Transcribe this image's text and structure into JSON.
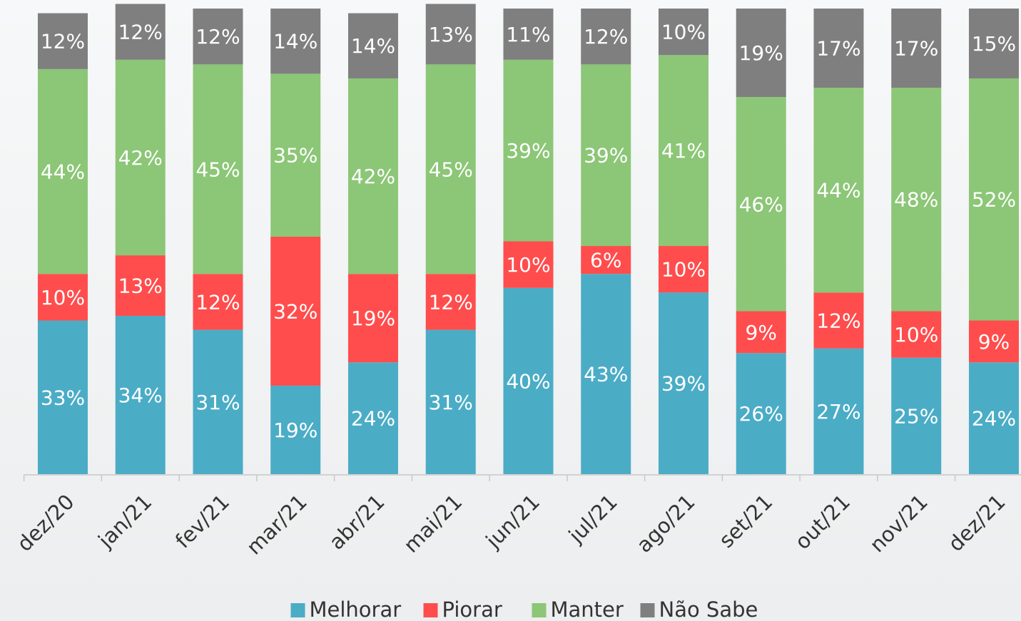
{
  "chart_data": {
    "type": "stacked-bar",
    "categories": [
      "dez/20",
      "jan/21",
      "fev/21",
      "mar/21",
      "abr/21",
      "mai/21",
      "jun/21",
      "jul/21",
      "ago/21",
      "set/21",
      "out/21",
      "nov/21",
      "dez/21"
    ],
    "ylim": [
      0,
      100
    ],
    "legend": "bottom",
    "series": [
      {
        "name": "Melhorar",
        "color": "#4bacc6",
        "values": [
          33,
          34,
          31,
          19,
          24,
          31,
          40,
          43,
          39,
          26,
          27,
          25,
          24
        ],
        "value_labels": [
          "33%",
          "34%",
          "31%",
          "19%",
          "24%",
          "31%",
          "40%",
          "43%",
          "39%",
          "26%",
          "27%",
          "25%",
          "24%"
        ]
      },
      {
        "name": "Piorar",
        "color": "#ff4d4d",
        "values": [
          10,
          13,
          12,
          32,
          19,
          12,
          10,
          6,
          10,
          9,
          12,
          10,
          9
        ],
        "value_labels": [
          "10%",
          "13%",
          "12%",
          "32%",
          "19%",
          "12%",
          "10%",
          "6%",
          "10%",
          "9%",
          "12%",
          "10%",
          "9%"
        ]
      },
      {
        "name": "Manter",
        "color": "#8cc677",
        "values": [
          44,
          42,
          45,
          35,
          42,
          45,
          39,
          39,
          41,
          46,
          44,
          48,
          52
        ],
        "value_labels": [
          "44%",
          "42%",
          "45%",
          "35%",
          "42%",
          "45%",
          "39%",
          "39%",
          "41%",
          "46%",
          "44%",
          "48%",
          "52%"
        ]
      },
      {
        "name": "Não Sabe",
        "color": "#7f7f7f",
        "values": [
          12,
          12,
          12,
          14,
          14,
          13,
          11,
          12,
          10,
          19,
          17,
          17,
          15
        ],
        "value_labels": [
          "12%",
          "12%",
          "12%",
          "14%",
          "14%",
          "13%",
          "11%",
          "12%",
          "10%",
          "19%",
          "17%",
          "17%",
          "15%"
        ]
      }
    ]
  }
}
